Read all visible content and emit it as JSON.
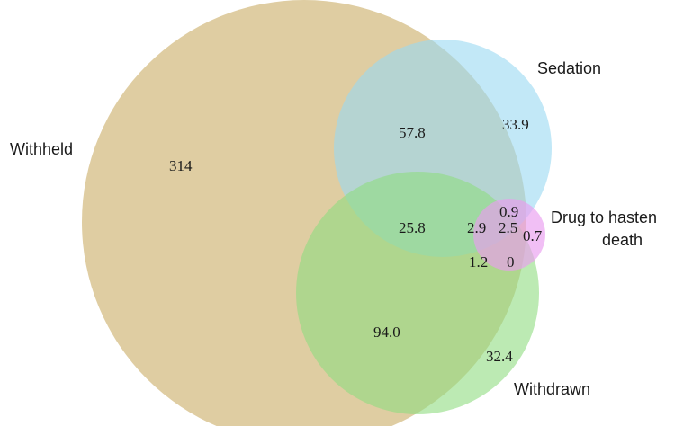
{
  "diagram": {
    "type": "venn",
    "sets": [
      {
        "name": "Withheld",
        "color": "#dcc898"
      },
      {
        "name": "Sedation",
        "color": "#9ad8f2"
      },
      {
        "name": "Withdrawn",
        "color": "#9be08c"
      },
      {
        "name": "Drug to hasten death",
        "color": "#ea9cf0"
      }
    ],
    "labels": {
      "withheld": "Withheld",
      "sedation": "Sedation",
      "withdrawn": "Withdrawn",
      "drug_line1": "Drug to hasten",
      "drug_line2": "death"
    },
    "regions": {
      "withheld_only": "314",
      "withheld_sedation": "57.8",
      "sedation_only": "33.9",
      "withheld_sedation_withdrawn": "25.8",
      "sedation_withdrawn": "2.9",
      "sedation_drug": "0.9",
      "sedation_withdrawn_drug": "2.5",
      "drug_only": "0.7",
      "withheld_withdrawn_drug": "1.2",
      "withdrawn_drug": "0",
      "withheld_withdrawn": "94.0",
      "withdrawn_only": "32.4"
    }
  }
}
